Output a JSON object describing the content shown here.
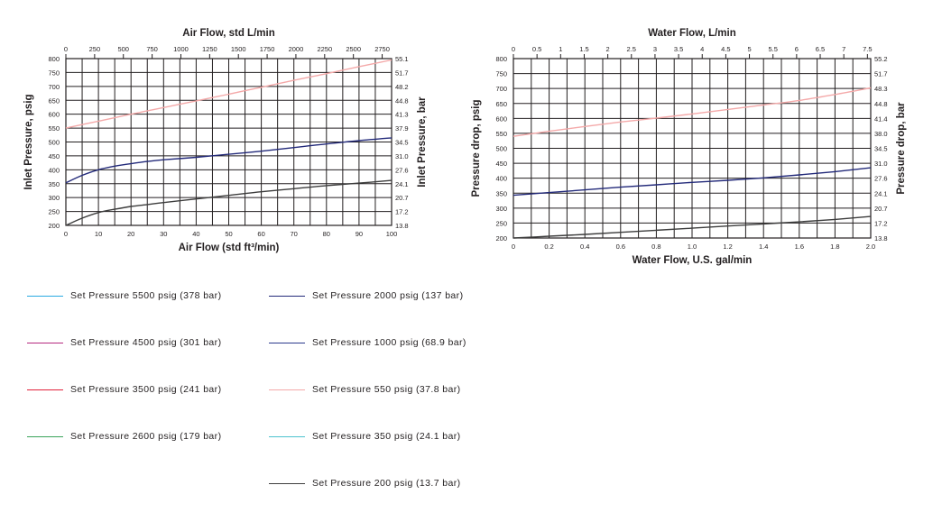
{
  "chart_data": [
    {
      "type": "line",
      "title": "Air Flow, std L/min",
      "xlabel": "Air Flow (std ft³/min)",
      "ylabel": "Inlet Pressure, psig",
      "y2label": "Inlet Pressure, bar",
      "xlim": [
        0,
        100
      ],
      "ylim": [
        200,
        800
      ],
      "x2lim": [
        0,
        2832
      ],
      "x_ticks": [
        "0",
        "10",
        "20",
        "30",
        "40",
        "50",
        "60",
        "70",
        "80",
        "90",
        "100"
      ],
      "x2_ticks": [
        "0",
        "250",
        "500",
        "750",
        "1000",
        "1250",
        "1500",
        "1750",
        "2000",
        "2250",
        "2500",
        "2750"
      ],
      "y_ticks": [
        "800",
        "750",
        "700",
        "650",
        "600",
        "550",
        "500",
        "450",
        "400",
        "350",
        "300",
        "250",
        "200"
      ],
      "y2_ticks": [
        "55.1",
        "51.7",
        "48.2",
        "44.8",
        "41.3",
        "37.9",
        "34.5",
        "31.0",
        "27.6",
        "24.1",
        "20.7",
        "17.2",
        "13.8"
      ],
      "grid": true,
      "series": [
        {
          "x": [
            0,
            10,
            20,
            30,
            40,
            50,
            60,
            70,
            80,
            90,
            100
          ],
          "y": [
            550,
            575,
            600,
            624,
            648,
            672,
            697,
            722,
            746,
            771,
            795
          ],
          "color": "#f4a9a9"
        },
        {
          "x": [
            0,
            5,
            10,
            15,
            20,
            25,
            30,
            40,
            50,
            60,
            70,
            80,
            90,
            100
          ],
          "y": [
            353,
            380,
            400,
            413,
            422,
            430,
            436,
            445,
            456,
            467,
            480,
            493,
            505,
            515
          ],
          "color": "#232a7a"
        },
        {
          "x": [
            0,
            5,
            10,
            15,
            20,
            25,
            30,
            40,
            50,
            60,
            70,
            80,
            90,
            100
          ],
          "y": [
            200,
            226,
            246,
            258,
            268,
            275,
            282,
            295,
            308,
            321,
            332,
            343,
            352,
            362
          ],
          "color": "#3d3d3d"
        }
      ]
    },
    {
      "type": "line",
      "title": "Water Flow, L/min",
      "xlabel": "Water Flow, U.S. gal/min",
      "ylabel": "Pressure drop, psig",
      "y2label": "Pressure drop, bar",
      "xlim": [
        0,
        2
      ],
      "ylim": [
        200,
        800
      ],
      "x2lim": [
        0,
        7.57
      ],
      "x_ticks": [
        "0",
        "0.2",
        "0.4",
        "0.6",
        "0.8",
        "1.0",
        "1.2",
        "1.4",
        "1.6",
        "1.8",
        "2.0"
      ],
      "x2_ticks": [
        "0",
        "0.5",
        "1",
        "1.5",
        "2",
        "2.5",
        "3",
        "3.5",
        "4",
        "4.5",
        "5",
        "5.5",
        "6",
        "6.5",
        "7",
        "7.5"
      ],
      "y_ticks": [
        "800",
        "750",
        "700",
        "650",
        "600",
        "550",
        "500",
        "450",
        "400",
        "350",
        "300",
        "250",
        "200"
      ],
      "y2_ticks": [
        "55.2",
        "51.7",
        "48.3",
        "44.8",
        "41.4",
        "38.0",
        "34.5",
        "31.0",
        "27.6",
        "24.1",
        "20.7",
        "17.2",
        "13.8"
      ],
      "grid": true,
      "series": [
        {
          "x": [
            0,
            0.2,
            0.4,
            0.6,
            0.8,
            1.0,
            1.2,
            1.4,
            1.6,
            1.8,
            2.0
          ],
          "y": [
            540,
            557,
            573,
            588,
            601,
            615,
            630,
            645,
            660,
            680,
            702
          ],
          "color": "#f4a9a9"
        },
        {
          "x": [
            0,
            0.2,
            0.4,
            0.6,
            0.8,
            1.0,
            1.2,
            1.4,
            1.6,
            1.8,
            2.0
          ],
          "y": [
            343,
            352,
            361,
            370,
            378,
            386,
            393,
            401,
            411,
            422,
            435
          ],
          "color": "#232a7a"
        },
        {
          "x": [
            0,
            0.2,
            0.4,
            0.6,
            0.8,
            1.0,
            1.2,
            1.4,
            1.6,
            1.8,
            2.0
          ],
          "y": [
            200,
            206,
            212,
            219,
            226,
            233,
            240,
            247,
            254,
            262,
            272
          ],
          "color": "#3d3d3d"
        }
      ]
    }
  ],
  "legend": {
    "items": [
      {
        "label": "Set Pressure 5500 psig (378 bar)",
        "color": "#29aae1"
      },
      {
        "label": "Set Pressure 4500 psig (301 bar)",
        "color": "#b5287f"
      },
      {
        "label": "Set Pressure 3500 psig (241 bar)",
        "color": "#e2203a"
      },
      {
        "label": "Set Pressure 2600 psig (179 bar)",
        "color": "#3aa35a"
      },
      {
        "label": "Set Pressure 2000 psig (137 bar)",
        "color": "#232a7a"
      },
      {
        "label": "Set Pressure 1000 psig (68.9 bar)",
        "color": "#2a3a8c"
      },
      {
        "label": "Set Pressure 550 psig (37.8 bar)",
        "color": "#f4a9a9"
      },
      {
        "label": "Set Pressure 350 psig (24.1 bar)",
        "color": "#4cc3cf"
      },
      {
        "label": "Set Pressure 200 psig (13.7 bar)",
        "color": "#3d3d3d"
      }
    ]
  }
}
